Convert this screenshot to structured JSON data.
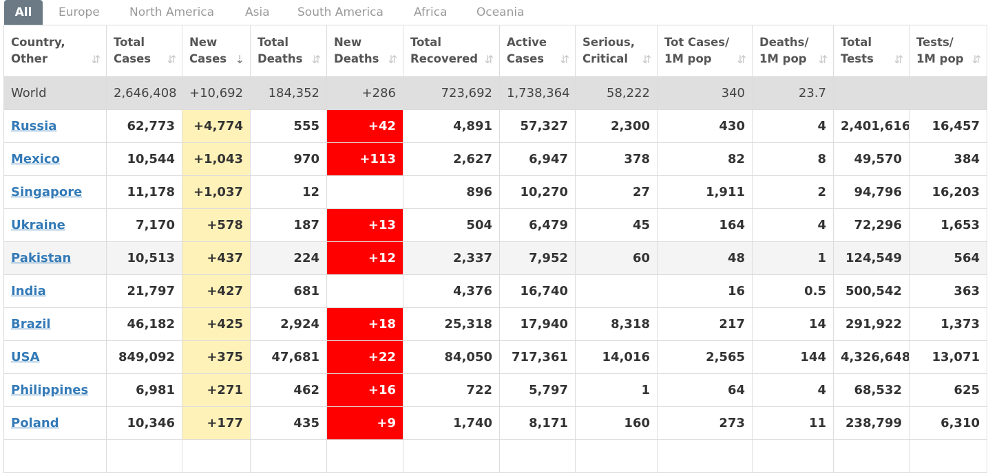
{
  "tabs": [
    "All",
    "Europe",
    "North America",
    "Asia",
    "South America",
    "Africa",
    "Oceania"
  ],
  "colors": {
    "new_cases_bg": "#fff2b8",
    "new_deaths_bg": "#ff0000",
    "link": "#337ab7",
    "active_tab": "#6b7a85"
  },
  "table": {
    "headers": [
      {
        "line1": "Country,",
        "line2": "Other"
      },
      {
        "line1": "Total",
        "line2": "Cases"
      },
      {
        "line1": "New",
        "line2": "Cases"
      },
      {
        "line1": "Total",
        "line2": "Deaths"
      },
      {
        "line1": "New",
        "line2": "Deaths"
      },
      {
        "line1": "Total",
        "line2": "Recovered"
      },
      {
        "line1": "Active",
        "line2": "Cases"
      },
      {
        "line1": "Serious,",
        "line2": "Critical"
      },
      {
        "line1": "Tot Cases/",
        "line2": "1M pop"
      },
      {
        "line1": "Deaths/",
        "line2": "1M pop"
      },
      {
        "line1": "Total",
        "line2": "Tests"
      },
      {
        "line1": "Tests/",
        "line2": "1M pop"
      }
    ],
    "sort_icon": "⇵",
    "sort_icon_active": "⇣",
    "world": [
      "World",
      "2,646,408",
      "+10,692",
      "184,352",
      "+286",
      "723,692",
      "1,738,364",
      "58,222",
      "340",
      "23.7",
      "",
      ""
    ],
    "rows": [
      [
        "Russia",
        "62,773",
        "+4,774",
        "555",
        "+42",
        "4,891",
        "57,327",
        "2,300",
        "430",
        "4",
        "2,401,616",
        "16,457"
      ],
      [
        "Mexico",
        "10,544",
        "+1,043",
        "970",
        "+113",
        "2,627",
        "6,947",
        "378",
        "82",
        "8",
        "49,570",
        "384"
      ],
      [
        "Singapore",
        "11,178",
        "+1,037",
        "12",
        "",
        "896",
        "10,270",
        "27",
        "1,911",
        "2",
        "94,796",
        "16,203"
      ],
      [
        "Ukraine",
        "7,170",
        "+578",
        "187",
        "+13",
        "504",
        "6,479",
        "45",
        "164",
        "4",
        "72,296",
        "1,653"
      ],
      [
        "Pakistan",
        "10,513",
        "+437",
        "224",
        "+12",
        "2,337",
        "7,952",
        "60",
        "48",
        "1",
        "124,549",
        "564"
      ],
      [
        "India",
        "21,797",
        "+427",
        "681",
        "",
        "4,376",
        "16,740",
        "",
        "16",
        "0.5",
        "500,542",
        "363"
      ],
      [
        "Brazil",
        "46,182",
        "+425",
        "2,924",
        "+18",
        "25,318",
        "17,940",
        "8,318",
        "217",
        "14",
        "291,922",
        "1,373"
      ],
      [
        "USA",
        "849,092",
        "+375",
        "47,681",
        "+22",
        "84,050",
        "717,361",
        "14,016",
        "2,565",
        "144",
        "4,326,648",
        "13,071"
      ],
      [
        "Philippines",
        "6,981",
        "+271",
        "462",
        "+16",
        "722",
        "5,797",
        "1",
        "64",
        "4",
        "68,532",
        "625"
      ],
      [
        "Poland",
        "10,346",
        "+177",
        "435",
        "+9",
        "1,740",
        "8,171",
        "160",
        "273",
        "11",
        "238,799",
        "6,310"
      ],
      [
        "",
        "",
        "",
        "",
        "",
        "",
        "",
        "",
        "",
        "",
        "",
        ""
      ]
    ]
  }
}
